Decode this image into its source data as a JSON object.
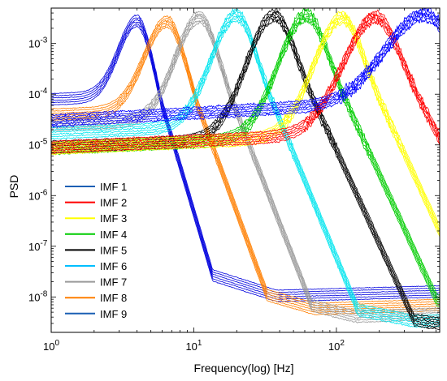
{
  "chart_data": {
    "type": "line",
    "title": "",
    "xlabel": "Frequency(log) [Hz]",
    "ylabel": "PSD",
    "xscale": "log",
    "yscale": "log",
    "xlim": [
      1,
      530
    ],
    "ylim": [
      2e-09,
      0.005
    ],
    "grid": false,
    "legend_position": "bottom-left",
    "x_ticks": [
      {
        "value": 1,
        "base": "10",
        "exp": "0"
      },
      {
        "value": 10,
        "base": "10",
        "exp": "1"
      },
      {
        "value": 100,
        "base": "10",
        "exp": "2"
      }
    ],
    "y_ticks": [
      {
        "value": 1e-08,
        "base": "10",
        "exp": "-8"
      },
      {
        "value": 1e-07,
        "base": "10",
        "exp": "-7"
      },
      {
        "value": 1e-06,
        "base": "10",
        "exp": "-6"
      },
      {
        "value": 1e-05,
        "base": "10",
        "exp": "-5"
      },
      {
        "value": 0.0001,
        "base": "10",
        "exp": "-4"
      },
      {
        "value": 0.001,
        "base": "10",
        "exp": "-3"
      }
    ],
    "series": [
      {
        "name": "IMF 1",
        "color": "#0000ff",
        "peak_freq": 420,
        "peak_psd": 0.0037,
        "low_level": 3e-05,
        "tail_slope": 0,
        "width": 0.28,
        "noise": 0.05,
        "rise": 0.6
      },
      {
        "name": "IMF 2",
        "color": "#ff0000",
        "peak_freq": 190,
        "peak_psd": 0.0033,
        "low_level": 9e-06,
        "tail_slope": 0,
        "width": 0.23,
        "noise": 0.045,
        "rise": 0.5
      },
      {
        "name": "IMF 3",
        "color": "#ffff00",
        "peak_freq": 110,
        "peak_psd": 0.0032,
        "low_level": 8.5e-06,
        "tail_slope": 0,
        "width": 0.2,
        "noise": 0.04,
        "rise": 0.5
      },
      {
        "name": "IMF 4",
        "color": "#00cc00",
        "peak_freq": 62,
        "peak_psd": 0.0036,
        "low_level": 8.5e-06,
        "tail_slope": 0,
        "width": 0.2,
        "noise": 0.04,
        "rise": 0.5
      },
      {
        "name": "IMF 5",
        "color": "#000000",
        "peak_freq": 37,
        "peak_psd": 0.0036,
        "low_level": 9e-06,
        "tail_slope": -0.7,
        "width": 0.2,
        "noise": 0.04,
        "rise": 0.45
      },
      {
        "name": "IMF 6",
        "color": "#00e5ee",
        "peak_freq": 20,
        "peak_psd": 0.0036,
        "low_level": 1.7e-05,
        "tail_slope": -0.95,
        "width": 0.18,
        "noise": 0.035,
        "rise": 0.45
      },
      {
        "name": "IMF 7",
        "color": "#999999",
        "peak_freq": 11,
        "peak_psd": 0.0033,
        "low_level": 2.5e-05,
        "tail_slope": -1.2,
        "width": 0.17,
        "noise": 0.03,
        "rise": 0.4
      },
      {
        "name": "IMF 8",
        "color": "#ff7f00",
        "peak_freq": 6.5,
        "peak_psd": 0.0027,
        "low_level": 4e-05,
        "tail_slope": -1.35,
        "width": 0.16,
        "noise": 0.02,
        "rise": 0.35
      },
      {
        "name": "IMF 9",
        "color": "#0000dd",
        "peak_freq": 4.0,
        "peak_psd": 0.0028,
        "low_level": 8e-05,
        "tail_slope": -1.5,
        "width": 0.13,
        "noise": 0.015,
        "rise": 0.3
      }
    ],
    "legend_entries": [
      {
        "label": "IMF 1",
        "color": "#1a5fb4"
      },
      {
        "label": "IMF 2",
        "color": "#ff0000"
      },
      {
        "label": "IMF 3",
        "color": "#ffff00"
      },
      {
        "label": "IMF 4",
        "color": "#00cc00"
      },
      {
        "label": "IMF 5",
        "color": "#000000"
      },
      {
        "label": "IMF 6",
        "color": "#00bfff"
      },
      {
        "label": "IMF 7",
        "color": "#999999"
      },
      {
        "label": "IMF 8",
        "color": "#ff7f00"
      },
      {
        "label": "IMF 9",
        "color": "#1a5fb4"
      }
    ]
  }
}
